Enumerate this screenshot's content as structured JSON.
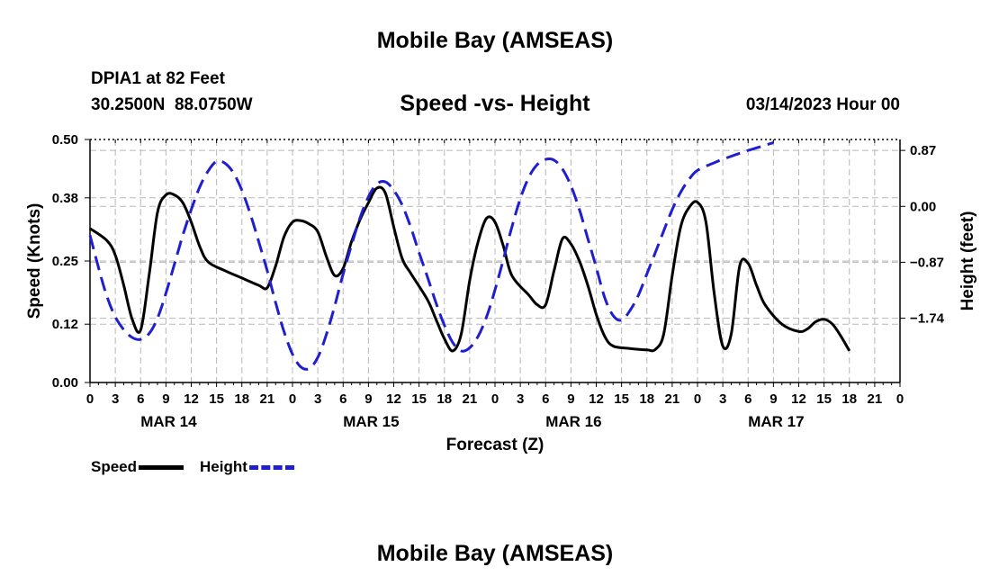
{
  "page": {
    "title": "Mobile Bay (AMSEAS)",
    "station_line": "DPIA1 at 82 Feet",
    "coords_line": "30.2500N  88.0750W",
    "chart_subtitle": "Speed -vs- Height",
    "datetime": "03/14/2023 Hour 00",
    "footer_title": "Mobile Bay (AMSEAS)"
  },
  "chart_data": {
    "type": "line",
    "title": "Speed -vs- Height",
    "xlabel": "Forecast (Z)",
    "ylabel": "Speed (Knots)",
    "y2label": "Height (feet)",
    "xlim": [
      0,
      96
    ],
    "ylim": [
      0,
      0.5
    ],
    "y2lim": [
      -2.74,
      1.04
    ],
    "x_tick_labels": [
      "0",
      "3",
      "6",
      "9",
      "12",
      "15",
      "18",
      "21",
      "0",
      "3",
      "6",
      "9",
      "12",
      "15",
      "18",
      "21",
      "0",
      "3",
      "6",
      "9",
      "12",
      "15",
      "18",
      "21",
      "0",
      "3",
      "6",
      "9",
      "12",
      "15",
      "18",
      "21",
      "0"
    ],
    "date_labels": [
      {
        "label": "MAR 14",
        "x": 9
      },
      {
        "label": "MAR 15",
        "x": 33
      },
      {
        "label": "MAR 16",
        "x": 57
      },
      {
        "label": "MAR 17",
        "x": 81
      }
    ],
    "y_ticks": [
      0.0,
      0.12,
      0.25,
      0.38,
      0.5
    ],
    "y_tick_labels": [
      "0.00",
      "0.12",
      "0.25",
      "0.38",
      "0.50"
    ],
    "y2_ticks": [
      -1.74,
      -0.87,
      0.0,
      0.87
    ],
    "y2_tick_labels": [
      "−1.74",
      "−0.87",
      "0.00",
      "0.87"
    ],
    "grid": true,
    "legend": "bottom-left",
    "series": [
      {
        "name": "Speed",
        "axis": "left",
        "color": "#000000",
        "dash": "solid",
        "points": [
          [
            0,
            0.317
          ],
          [
            2,
            0.292
          ],
          [
            3,
            0.262
          ],
          [
            4,
            0.2
          ],
          [
            5,
            0.13
          ],
          [
            6,
            0.108
          ],
          [
            7,
            0.22
          ],
          [
            8,
            0.35
          ],
          [
            9,
            0.386
          ],
          [
            10,
            0.386
          ],
          [
            11,
            0.37
          ],
          [
            12,
            0.33
          ],
          [
            13,
            0.28
          ],
          [
            14,
            0.248
          ],
          [
            16,
            0.23
          ],
          [
            18,
            0.215
          ],
          [
            20,
            0.2
          ],
          [
            21,
            0.195
          ],
          [
            22,
            0.24
          ],
          [
            23,
            0.3
          ],
          [
            24,
            0.33
          ],
          [
            25,
            0.333
          ],
          [
            26,
            0.326
          ],
          [
            27,
            0.31
          ],
          [
            28,
            0.26
          ],
          [
            29,
            0.22
          ],
          [
            30,
            0.235
          ],
          [
            31,
            0.29
          ],
          [
            32,
            0.335
          ],
          [
            33,
            0.37
          ],
          [
            34,
            0.4
          ],
          [
            35,
            0.39
          ],
          [
            36,
            0.32
          ],
          [
            37,
            0.255
          ],
          [
            38,
            0.225
          ],
          [
            40,
            0.17
          ],
          [
            41,
            0.13
          ],
          [
            42,
            0.09
          ],
          [
            43,
            0.065
          ],
          [
            44,
            0.1
          ],
          [
            45,
            0.21
          ],
          [
            46,
            0.29
          ],
          [
            47,
            0.338
          ],
          [
            48,
            0.33
          ],
          [
            49,
            0.28
          ],
          [
            50,
            0.22
          ],
          [
            52,
            0.18
          ],
          [
            53,
            0.16
          ],
          [
            54,
            0.16
          ],
          [
            55,
            0.23
          ],
          [
            56,
            0.296
          ],
          [
            57,
            0.285
          ],
          [
            58,
            0.25
          ],
          [
            59,
            0.2
          ],
          [
            60,
            0.14
          ],
          [
            61,
            0.095
          ],
          [
            62,
            0.075
          ],
          [
            64,
            0.07
          ],
          [
            66,
            0.067
          ],
          [
            67,
            0.068
          ],
          [
            68,
            0.1
          ],
          [
            69,
            0.22
          ],
          [
            70,
            0.32
          ],
          [
            71,
            0.36
          ],
          [
            72,
            0.371
          ],
          [
            73,
            0.33
          ],
          [
            74,
            0.18
          ],
          [
            75,
            0.075
          ],
          [
            76,
            0.1
          ],
          [
            77,
            0.24
          ],
          [
            78,
            0.245
          ],
          [
            79,
            0.2
          ],
          [
            80,
            0.16
          ],
          [
            82,
            0.12
          ],
          [
            84,
            0.105
          ],
          [
            85,
            0.11
          ],
          [
            86,
            0.125
          ],
          [
            87,
            0.13
          ],
          [
            88,
            0.12
          ],
          [
            89,
            0.095
          ],
          [
            90,
            0.065
          ]
        ]
      },
      {
        "name": "Height",
        "axis": "right",
        "color": "#1f1fd0",
        "dash": "dashed",
        "points": [
          [
            0,
            -0.45
          ],
          [
            1,
            -0.95
          ],
          [
            2,
            -1.4
          ],
          [
            3,
            -1.72
          ],
          [
            4,
            -1.92
          ],
          [
            5,
            -2.04
          ],
          [
            6,
            -2.07
          ],
          [
            7,
            -1.98
          ],
          [
            8,
            -1.74
          ],
          [
            9,
            -1.35
          ],
          [
            10,
            -0.9
          ],
          [
            11,
            -0.45
          ],
          [
            12,
            -0.05
          ],
          [
            13,
            0.3
          ],
          [
            14,
            0.55
          ],
          [
            15,
            0.7
          ],
          [
            16,
            0.67
          ],
          [
            17,
            0.52
          ],
          [
            18,
            0.25
          ],
          [
            19,
            -0.12
          ],
          [
            20,
            -0.55
          ],
          [
            21,
            -1.0
          ],
          [
            22,
            -1.5
          ],
          [
            23,
            -1.95
          ],
          [
            24,
            -2.3
          ],
          [
            25,
            -2.5
          ],
          [
            26,
            -2.52
          ],
          [
            27,
            -2.35
          ],
          [
            28,
            -2.0
          ],
          [
            29,
            -1.55
          ],
          [
            30,
            -1.05
          ],
          [
            31,
            -0.6
          ],
          [
            32,
            -0.18
          ],
          [
            33,
            0.15
          ],
          [
            34,
            0.35
          ],
          [
            35,
            0.38
          ],
          [
            36,
            0.25
          ],
          [
            37,
            0.02
          ],
          [
            38,
            -0.32
          ],
          [
            39,
            -0.72
          ],
          [
            40,
            -1.1
          ],
          [
            41,
            -1.5
          ],
          [
            42,
            -1.85
          ],
          [
            43,
            -2.12
          ],
          [
            44,
            -2.25
          ],
          [
            45,
            -2.2
          ],
          [
            46,
            -2.02
          ],
          [
            47,
            -1.72
          ],
          [
            48,
            -1.3
          ],
          [
            49,
            -0.82
          ],
          [
            50,
            -0.32
          ],
          [
            51,
            0.12
          ],
          [
            52,
            0.45
          ],
          [
            53,
            0.65
          ],
          [
            54,
            0.73
          ],
          [
            55,
            0.72
          ],
          [
            56,
            0.58
          ],
          [
            57,
            0.32
          ],
          [
            58,
            -0.05
          ],
          [
            59,
            -0.5
          ],
          [
            60,
            -0.95
          ],
          [
            61,
            -1.42
          ],
          [
            62,
            -1.7
          ],
          [
            63,
            -1.77
          ],
          [
            64,
            -1.62
          ],
          [
            65,
            -1.38
          ],
          [
            66,
            -1.05
          ],
          [
            67,
            -0.72
          ],
          [
            68,
            -0.38
          ],
          [
            69,
            -0.05
          ],
          [
            70,
            0.22
          ],
          [
            71,
            0.42
          ],
          [
            72,
            0.56
          ],
          [
            74,
            0.68
          ],
          [
            76,
            0.78
          ],
          [
            78,
            0.87
          ],
          [
            80,
            0.95
          ],
          [
            81,
            0.99
          ]
        ]
      }
    ]
  }
}
